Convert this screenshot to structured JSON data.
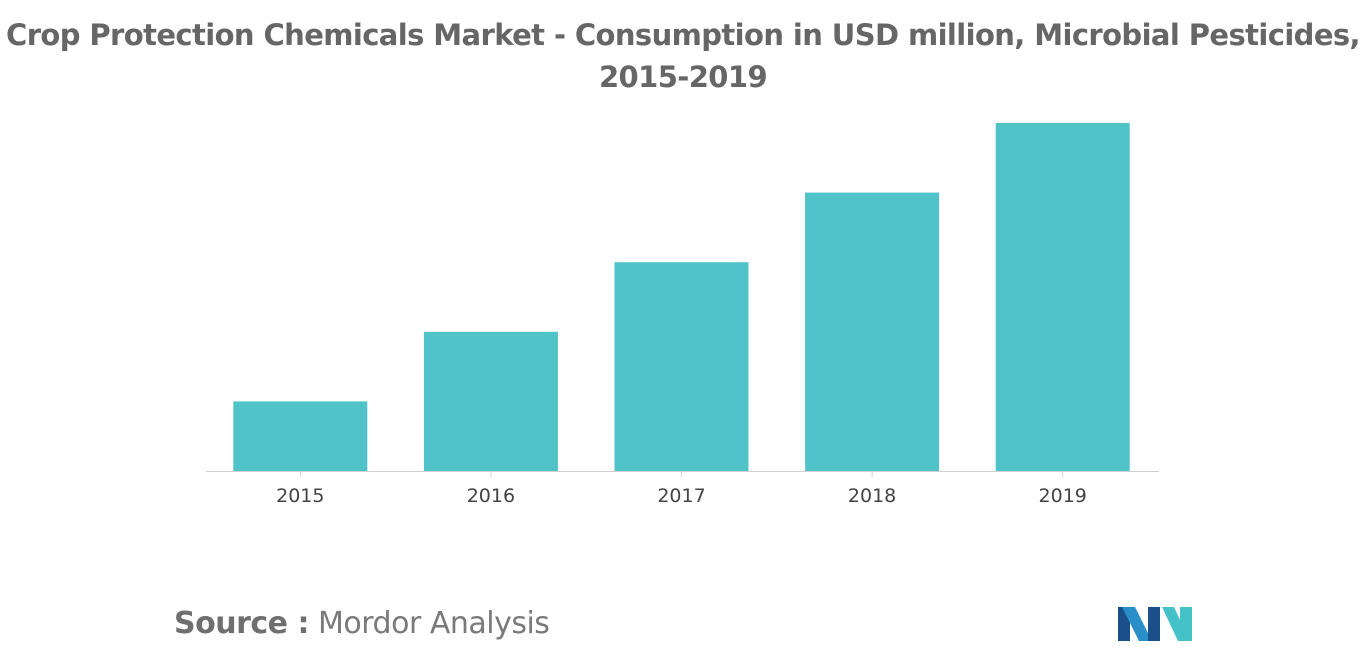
{
  "chart_data": {
    "type": "bar",
    "title": "Crop Protection Chemicals Market - Consumption in USD million, Microbial Pesticides, 2015-2019",
    "xlabel": "",
    "ylabel": "",
    "categories": [
      "2015",
      "2016",
      "2017",
      "2018",
      "2019"
    ],
    "values": [
      1,
      2,
      3,
      4,
      5
    ],
    "ylim": [
      0,
      5
    ],
    "grid": false,
    "legend": "none",
    "colors": {
      "bar": "#50c3c8",
      "axis": "#d0d0d0",
      "tick_label": "#444444"
    }
  },
  "source": {
    "label": "Source :",
    "value": "Mordor Analysis"
  },
  "logo": {
    "icon": "mordor-intelligence-logo",
    "colors": [
      "#1b4f8a",
      "#2a8fc9",
      "#45c2c8"
    ]
  }
}
